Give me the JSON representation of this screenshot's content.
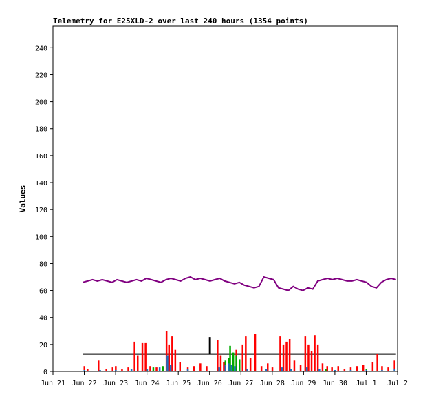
{
  "chart_data": {
    "type": "line",
    "title": "Telemetry for E25XLD-2 over last 240 hours (1354 points)",
    "ylabel": "Values",
    "xlabel": "",
    "ylim": [
      0,
      256
    ],
    "xlim": [
      0,
      11
    ],
    "y_ticks": [
      0,
      20,
      40,
      60,
      80,
      100,
      120,
      140,
      160,
      180,
      200,
      220,
      240
    ],
    "x_tick_labels": [
      "Jun 21",
      "Jun 22",
      "Jun 23",
      "Jun 24",
      "Jun 25",
      "Jun 26",
      "Jun 27",
      "Jun 28",
      "Jun 29",
      "Jun 30",
      "Jul 1",
      "Jul 2"
    ],
    "grid": false,
    "legend": "none",
    "colors": {
      "purple_series": "#800080",
      "black_series": "#000000",
      "red_series": "#ff0000",
      "green_series": "#00aa00",
      "blue_series": "#1f6fbf"
    },
    "series": [
      {
        "color": "purple",
        "kind": "line",
        "x_start": 0.95,
        "x_end": 10.95,
        "values": [
          66,
          67,
          68,
          67,
          68,
          67,
          66,
          68,
          67,
          66,
          67,
          68,
          67,
          69,
          68,
          67,
          66,
          68,
          69,
          68,
          67,
          69,
          70,
          68,
          69,
          68,
          67,
          68,
          69,
          67,
          66,
          65,
          66,
          64,
          63,
          62,
          63,
          70,
          69,
          68,
          62,
          61,
          60,
          63,
          61,
          60,
          62,
          61,
          67,
          68,
          69,
          68,
          69,
          68,
          67,
          67,
          68,
          67,
          66,
          63,
          62,
          66,
          68,
          69,
          68
        ]
      },
      {
        "color": "black",
        "kind": "step",
        "points": [
          [
            0.95,
            13
          ],
          [
            5.0,
            13
          ],
          [
            5.0,
            25
          ],
          [
            5.02,
            25
          ],
          [
            5.02,
            13
          ],
          [
            10.95,
            13
          ]
        ]
      },
      {
        "color": "red",
        "kind": "spikes",
        "points": [
          [
            1.0,
            4
          ],
          [
            1.1,
            2
          ],
          [
            1.45,
            8
          ],
          [
            1.7,
            2
          ],
          [
            1.9,
            3
          ],
          [
            2.0,
            4
          ],
          [
            2.2,
            2
          ],
          [
            2.4,
            3
          ],
          [
            2.6,
            22
          ],
          [
            2.7,
            12
          ],
          [
            2.85,
            21
          ],
          [
            2.95,
            21
          ],
          [
            3.1,
            4
          ],
          [
            3.3,
            3
          ],
          [
            3.5,
            3
          ],
          [
            3.62,
            30
          ],
          [
            3.7,
            20
          ],
          [
            3.8,
            26
          ],
          [
            3.9,
            16
          ],
          [
            4.05,
            7
          ],
          [
            4.3,
            3
          ],
          [
            4.5,
            4
          ],
          [
            4.7,
            6
          ],
          [
            4.9,
            4
          ],
          [
            5.25,
            23
          ],
          [
            5.35,
            12
          ],
          [
            5.45,
            7
          ],
          [
            5.85,
            16
          ],
          [
            5.95,
            6
          ],
          [
            6.05,
            20
          ],
          [
            6.15,
            26
          ],
          [
            6.3,
            10
          ],
          [
            6.45,
            28
          ],
          [
            6.65,
            4
          ],
          [
            6.85,
            6
          ],
          [
            7.0,
            3
          ],
          [
            7.25,
            26
          ],
          [
            7.35,
            20
          ],
          [
            7.45,
            22
          ],
          [
            7.55,
            24
          ],
          [
            7.7,
            8
          ],
          [
            7.9,
            5
          ],
          [
            8.05,
            26
          ],
          [
            8.15,
            20
          ],
          [
            8.25,
            15
          ],
          [
            8.35,
            27
          ],
          [
            8.45,
            20
          ],
          [
            8.6,
            6
          ],
          [
            8.75,
            4
          ],
          [
            8.9,
            3
          ],
          [
            9.1,
            4
          ],
          [
            9.3,
            2
          ],
          [
            9.5,
            3
          ],
          [
            9.7,
            4
          ],
          [
            9.9,
            5
          ],
          [
            10.2,
            7
          ],
          [
            10.35,
            13
          ],
          [
            10.5,
            4
          ],
          [
            10.7,
            3
          ],
          [
            10.9,
            8
          ]
        ]
      },
      {
        "color": "green",
        "kind": "spikes",
        "points": [
          [
            3.0,
            2
          ],
          [
            3.2,
            3
          ],
          [
            3.5,
            4
          ],
          [
            5.5,
            8
          ],
          [
            5.6,
            10
          ],
          [
            5.65,
            19
          ],
          [
            5.75,
            14
          ],
          [
            5.85,
            12
          ],
          [
            5.95,
            9
          ],
          [
            7.6,
            2
          ],
          [
            8.7,
            2
          ],
          [
            10.0,
            2
          ]
        ]
      },
      {
        "color": "blue",
        "kind": "spikes",
        "points": [
          [
            1.0,
            1
          ],
          [
            1.5,
            1
          ],
          [
            2.0,
            1
          ],
          [
            2.5,
            2
          ],
          [
            3.0,
            2
          ],
          [
            3.4,
            3
          ],
          [
            3.65,
            12
          ],
          [
            3.75,
            5
          ],
          [
            4.3,
            2
          ],
          [
            5.3,
            3
          ],
          [
            5.5,
            5
          ],
          [
            5.6,
            6
          ],
          [
            5.7,
            5
          ],
          [
            5.8,
            4
          ],
          [
            6.2,
            2
          ],
          [
            6.8,
            2
          ],
          [
            7.3,
            3
          ],
          [
            7.6,
            2
          ],
          [
            8.1,
            3
          ],
          [
            8.5,
            2
          ],
          [
            9.0,
            1
          ],
          [
            9.5,
            1
          ],
          [
            10.0,
            1
          ],
          [
            10.5,
            1
          ],
          [
            10.9,
            2
          ]
        ]
      }
    ]
  }
}
